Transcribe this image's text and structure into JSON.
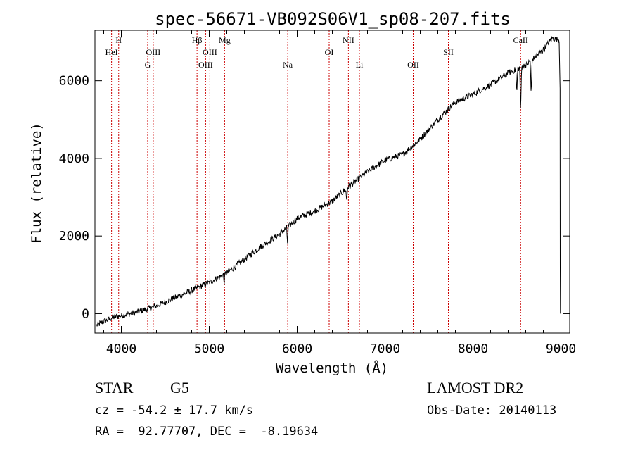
{
  "chart_data": {
    "type": "line",
    "title": "spec-56671-VB092S06V1_sp08-207.fits",
    "xlabel": "Wavelength (Å)",
    "ylabel": "Flux (relative)",
    "xlim": [
      3700,
      9100
    ],
    "ylim": [
      -500,
      7300
    ],
    "x_ticks": [
      4000,
      5000,
      6000,
      7000,
      8000,
      9000
    ],
    "y_ticks": [
      0,
      2000,
      4000,
      6000
    ],
    "line_color": "#000000",
    "marker_color": "#cc0000",
    "spectrum_anchors": [
      {
        "x": 3720,
        "y": -300
      },
      {
        "x": 3800,
        "y": -200
      },
      {
        "x": 3900,
        "y": -100
      },
      {
        "x": 4000,
        "y": -50
      },
      {
        "x": 4200,
        "y": 50
      },
      {
        "x": 4400,
        "y": 200
      },
      {
        "x": 4600,
        "y": 400
      },
      {
        "x": 4800,
        "y": 600
      },
      {
        "x": 5000,
        "y": 800
      },
      {
        "x": 5200,
        "y": 1050
      },
      {
        "x": 5400,
        "y": 1400
      },
      {
        "x": 5600,
        "y": 1750
      },
      {
        "x": 5800,
        "y": 2050
      },
      {
        "x": 6000,
        "y": 2450
      },
      {
        "x": 6200,
        "y": 2650
      },
      {
        "x": 6400,
        "y": 2900
      },
      {
        "x": 6600,
        "y": 3300
      },
      {
        "x": 6800,
        "y": 3650
      },
      {
        "x": 7000,
        "y": 3950
      },
      {
        "x": 7200,
        "y": 4100
      },
      {
        "x": 7400,
        "y": 4500
      },
      {
        "x": 7600,
        "y": 5000
      },
      {
        "x": 7800,
        "y": 5450
      },
      {
        "x": 8000,
        "y": 5650
      },
      {
        "x": 8200,
        "y": 5900
      },
      {
        "x": 8400,
        "y": 6200
      },
      {
        "x": 8600,
        "y": 6400
      },
      {
        "x": 8800,
        "y": 6800
      },
      {
        "x": 8900,
        "y": 7100
      },
      {
        "x": 8980,
        "y": 7050
      }
    ],
    "absorption_dips": [
      {
        "x": 5890,
        "depth": 400
      },
      {
        "x": 6563,
        "depth": 350
      },
      {
        "x": 5170,
        "depth": 200
      },
      {
        "x": 8498,
        "depth": 700
      },
      {
        "x": 8542,
        "depth": 1300
      },
      {
        "x": 8662,
        "depth": 1000
      }
    ],
    "line_markers": [
      {
        "x": 3889,
        "label": "HeI",
        "row": 2
      },
      {
        "x": 3970,
        "label": "H",
        "row": 1
      },
      {
        "x": 4300,
        "label": "G",
        "row": 3
      },
      {
        "x": 4363,
        "label": "OIII",
        "row": 2
      },
      {
        "x": 4861,
        "label": "Hβ",
        "row": 1
      },
      {
        "x": 4959,
        "label": "OIII",
        "row": 3
      },
      {
        "x": 5007,
        "label": "OIII",
        "row": 2
      },
      {
        "x": 5175,
        "label": "Mg",
        "row": 1
      },
      {
        "x": 5893,
        "label": "Na",
        "row": 3
      },
      {
        "x": 6364,
        "label": "OI",
        "row": 2
      },
      {
        "x": 6583,
        "label": "NII",
        "row": 1
      },
      {
        "x": 6708,
        "label": "Li",
        "row": 3
      },
      {
        "x": 7320,
        "label": "OII",
        "row": 3
      },
      {
        "x": 7720,
        "label": "SII",
        "row": 2
      },
      {
        "x": 8542,
        "label": "CaII",
        "row": 1
      }
    ]
  },
  "info": {
    "object_class": "STAR",
    "subclass": "G5",
    "survey": "LAMOST DR2",
    "redshift": "cz = -54.2 ± 17.7 km/s",
    "obs_date": "Obs-Date: 20140113",
    "coords": "RA =  92.77707, DEC =  -8.19634"
  }
}
